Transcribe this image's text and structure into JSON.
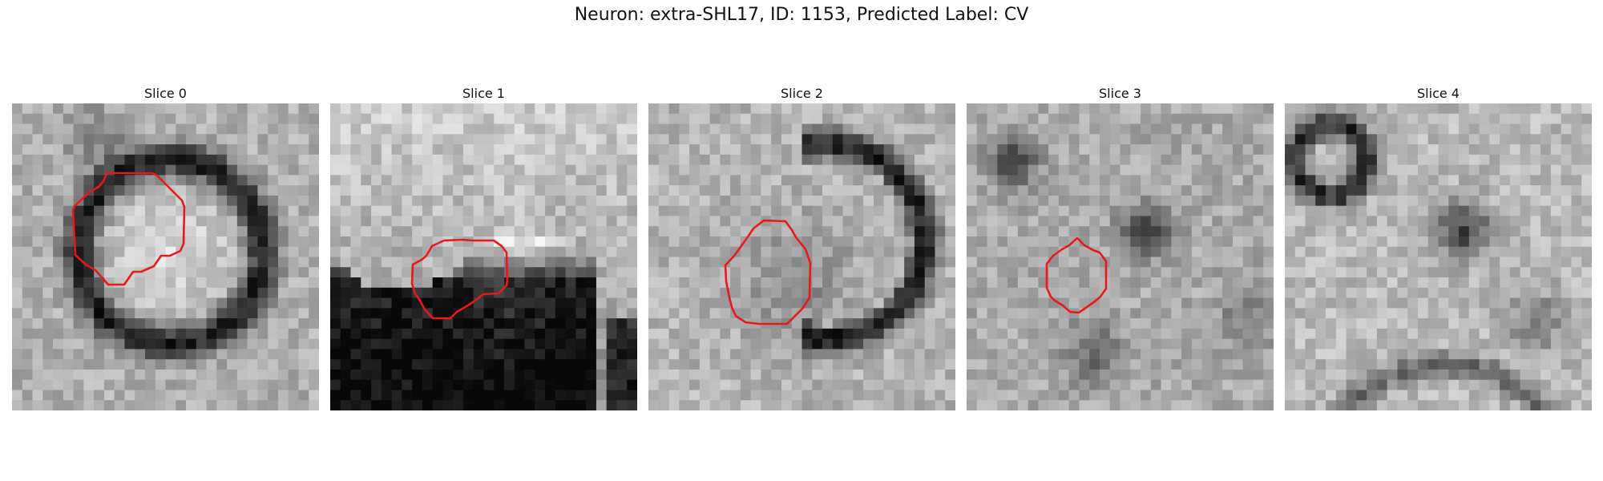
{
  "figure": {
    "title": "Neuron: extra-SHL17, ID: 1153, Predicted Label: CV"
  },
  "panels": [
    {
      "title": "Slice 0",
      "has_contour": true
    },
    {
      "title": "Slice 1",
      "has_contour": true
    },
    {
      "title": "Slice 2",
      "has_contour": true
    },
    {
      "title": "Slice 3",
      "has_contour": true
    },
    {
      "title": "Slice 4",
      "has_contour": false
    }
  ],
  "colors": {
    "contour": "#e8191a",
    "background": "#ffffff"
  }
}
